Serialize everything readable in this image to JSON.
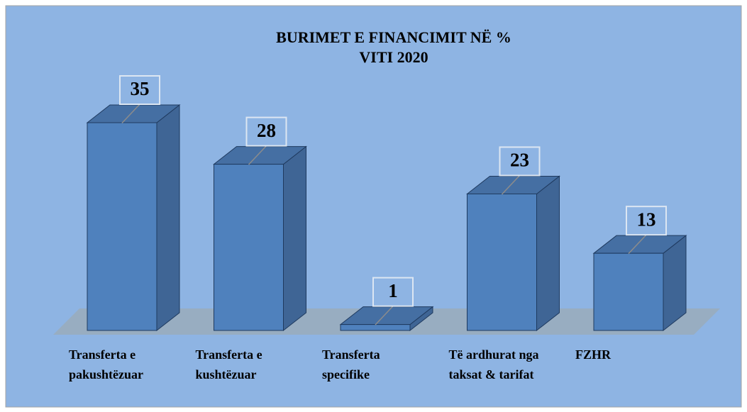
{
  "chart_data": {
    "type": "bar3d",
    "title": "BURIMET E FINANCIMIT NË %",
    "subtitle": "VITI 2020",
    "categories": [
      "Transferta e pakushtëzuar",
      "Transferta e kushtëzuar",
      "Transferta specifike",
      "Të ardhurat nga taksat & tarifat",
      "FZHR"
    ],
    "values": [
      35,
      28,
      1,
      23,
      13
    ],
    "color": "#4f81bd"
  }
}
